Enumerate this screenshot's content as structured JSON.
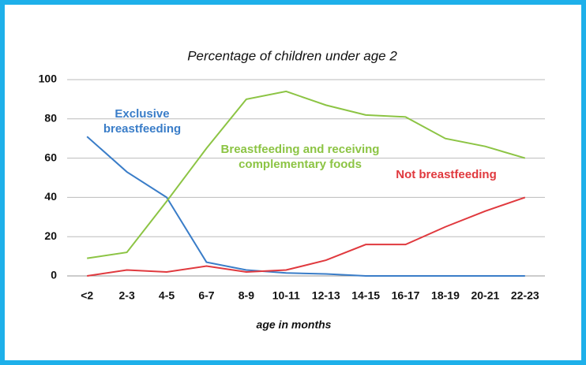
{
  "chart_data": {
    "type": "line",
    "title": "Percentage of children under age 2",
    "x_label": "age in months",
    "categories": [
      "<2",
      "2-3",
      "4-5",
      "6-7",
      "8-9",
      "10-11",
      "12-13",
      "14-15",
      "16-17",
      "18-19",
      "20-21",
      "22-23"
    ],
    "series": [
      {
        "name": "Exclusive breastfeeding",
        "color": "#3a7dc8",
        "values": [
          71,
          53,
          40,
          7,
          3,
          1.5,
          1,
          0,
          0,
          0,
          0,
          0
        ]
      },
      {
        "name": "Breastfeeding and receiving complementary foods",
        "color": "#8cc444",
        "values": [
          9,
          12,
          38,
          65,
          90,
          94,
          87,
          82,
          81,
          70,
          66,
          60
        ]
      },
      {
        "name": "Not breastfeeding",
        "color": "#e0393e",
        "values": [
          0,
          3,
          2,
          5,
          2,
          3,
          8,
          16,
          16,
          25,
          33,
          40
        ]
      }
    ],
    "ylim": [
      0,
      100
    ],
    "yticks": [
      0,
      20,
      40,
      60,
      80,
      100
    ],
    "grid": true
  }
}
